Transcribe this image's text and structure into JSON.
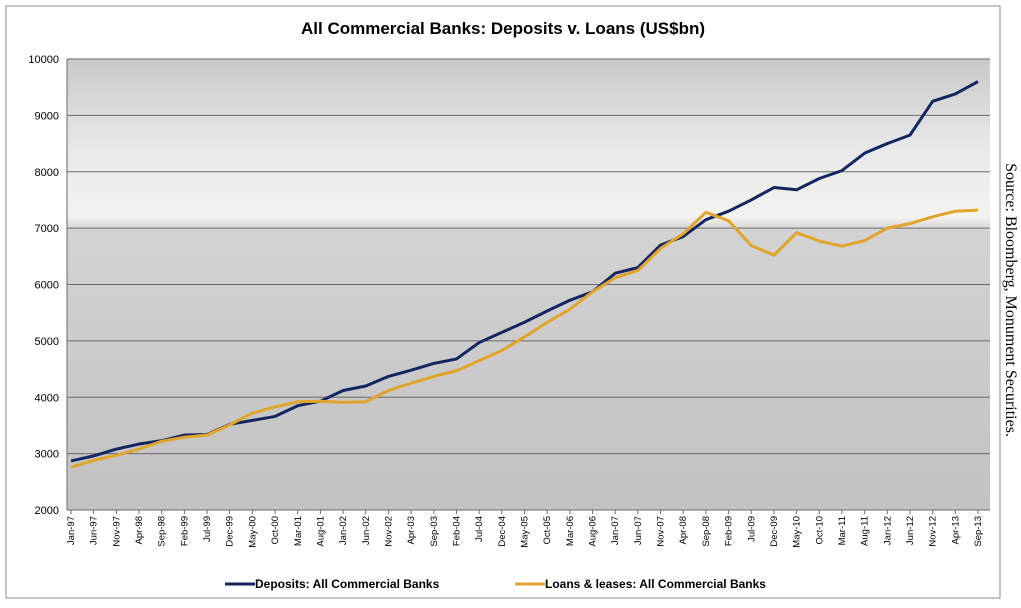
{
  "chart_data": {
    "type": "line",
    "title": "All Commercial Banks: Deposits v. Loans (US$bn)",
    "source": "Source: Bloomberg, Monument Securities.",
    "categories": [
      "Jan-97",
      "Jun-97",
      "Nov-97",
      "Apr-98",
      "Sep-98",
      "Feb-99",
      "Jul-99",
      "Dec-99",
      "May-00",
      "Oct-00",
      "Mar-01",
      "Aug-01",
      "Jan-02",
      "Jun-02",
      "Nov-02",
      "Apr-03",
      "Sep-03",
      "Feb-04",
      "Jul-04",
      "Dec-04",
      "May-05",
      "Oct-05",
      "Mar-06",
      "Aug-06",
      "Jan-07",
      "Jun-07",
      "Nov-07",
      "Apr-08",
      "Sep-08",
      "Feb-09",
      "Jul-09",
      "Dec-09",
      "May-10",
      "Oct-10",
      "Mar-11",
      "Aug-11",
      "Jan-12",
      "Jun-12",
      "Nov-12",
      "Apr-13",
      "Sep-13"
    ],
    "series": [
      {
        "name": "Deposits: All Commercial Banks",
        "color": "#142660",
        "values": [
          2870,
          2960,
          3080,
          3170,
          3230,
          3330,
          3340,
          3520,
          3590,
          3660,
          3850,
          3930,
          4120,
          4200,
          4370,
          4480,
          4600,
          4680,
          4970,
          5150,
          5330,
          5530,
          5720,
          5870,
          6200,
          6300,
          6700,
          6850,
          7150,
          7300,
          7500,
          7720,
          7680,
          7880,
          8020,
          8330,
          8500,
          8650,
          9250,
          9380,
          9600
        ]
      },
      {
        "name": "Loans & leases: All Commercial Banks",
        "color": "#e1a52b",
        "values": [
          2760,
          2880,
          2970,
          3080,
          3220,
          3290,
          3330,
          3510,
          3720,
          3830,
          3920,
          3930,
          3910,
          3920,
          4120,
          4250,
          4370,
          4470,
          4650,
          4830,
          5070,
          5330,
          5560,
          5870,
          6120,
          6250,
          6640,
          6900,
          7280,
          7130,
          6690,
          6520,
          6920,
          6770,
          6680,
          6780,
          7000,
          7080,
          7200,
          7300,
          7320
        ]
      }
    ],
    "ylim": [
      2000,
      10000
    ],
    "yticks": [
      2000,
      3000,
      4000,
      5000,
      6000,
      7000,
      8000,
      9000,
      10000
    ],
    "grid": true
  }
}
